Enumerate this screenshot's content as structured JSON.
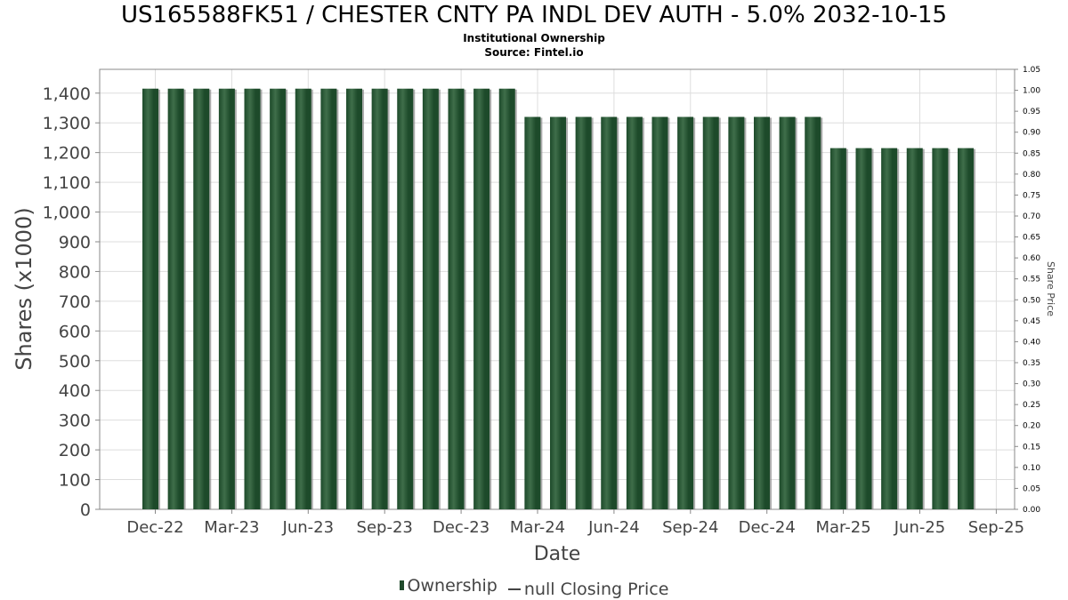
{
  "header": {
    "title": "US165588FK51 / CHESTER CNTY PA INDL DEV AUTH - 5.0% 2032-10-15",
    "subtitle": "Institutional Ownership",
    "source": "Source: Fintel.io"
  },
  "legend": {
    "ownership_label": "Ownership",
    "price_label": "null Closing Price"
  },
  "colors": {
    "bar_dark": "#1d4a2a",
    "bar_light": "#3f6e4a",
    "bar_shadow": "#8a8a8a",
    "grid": "#dddddd",
    "plot_border": "#888888"
  },
  "chart_data": {
    "type": "bar",
    "xlabel": "Date",
    "ylabel": "Shares (x1000)",
    "y2label": "Share Price",
    "ylim": [
      0,
      1480
    ],
    "y_ticks": [
      0,
      100,
      200,
      300,
      400,
      500,
      600,
      700,
      800,
      900,
      1000,
      1100,
      1200,
      1300,
      1400
    ],
    "y_tick_labels": [
      "0",
      "100",
      "200",
      "300",
      "400",
      "500",
      "600",
      "700",
      "800",
      "900",
      "1,000",
      "1,100",
      "1,200",
      "1,300",
      "1,400"
    ],
    "y2lim": [
      0,
      1.05
    ],
    "y2_tick_labels": [
      "0.00",
      "0.05",
      "0.10",
      "0.15",
      "0.20",
      "0.25",
      "0.30",
      "0.35",
      "0.40",
      "0.45",
      "0.50",
      "0.55",
      "0.60",
      "0.65",
      "0.70",
      "0.75",
      "0.80",
      "0.85",
      "0.90",
      "0.95",
      "1.00",
      "1.05"
    ],
    "x_tick_labels": [
      "Dec-22",
      "Mar-23",
      "Jun-23",
      "Sep-23",
      "Dec-23",
      "Mar-24",
      "Jun-24",
      "Sep-24",
      "Dec-24",
      "Mar-25",
      "Jun-25",
      "Sep-25"
    ],
    "series": [
      {
        "name": "Ownership",
        "values": [
          1415,
          1415,
          1415,
          1415,
          1415,
          1415,
          1415,
          1415,
          1415,
          1415,
          1415,
          1415,
          1415,
          1415,
          1415,
          1320,
          1320,
          1320,
          1320,
          1320,
          1320,
          1320,
          1320,
          1320,
          1320,
          1320,
          1320,
          1215,
          1215,
          1215,
          1215,
          1215,
          1215
        ]
      }
    ]
  }
}
